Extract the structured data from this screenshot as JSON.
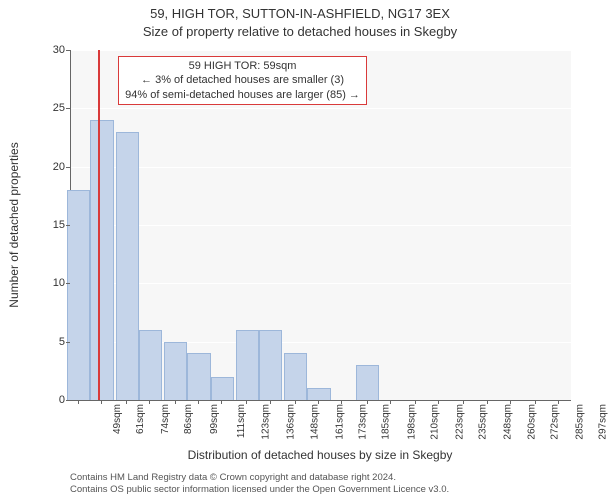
{
  "title_line1": "59, HIGH TOR, SUTTON-IN-ASHFIELD, NG17 3EX",
  "title_line2": "Size of property relative to detached houses in Skegby",
  "y_axis_label": "Number of detached properties",
  "x_axis_label": "Distribution of detached houses by size in Skegby",
  "chart": {
    "type": "bar",
    "background_color": "#f7f7f7",
    "grid_color": "#ffffff",
    "axis_color": "#666666",
    "bar_color": "#c5d4ea",
    "bar_border_color": "#9db7da",
    "ylim": [
      0,
      30
    ],
    "ytick_step": 5,
    "yticks": [
      0,
      5,
      10,
      15,
      20,
      25,
      30
    ],
    "x_tick_labels": [
      "49sqm",
      "61sqm",
      "74sqm",
      "86sqm",
      "99sqm",
      "111sqm",
      "123sqm",
      "136sqm",
      "148sqm",
      "161sqm",
      "173sqm",
      "185sqm",
      "198sqm",
      "210sqm",
      "223sqm",
      "235sqm",
      "248sqm",
      "260sqm",
      "272sqm",
      "285sqm",
      "297sqm"
    ],
    "x_tick_positions": [
      49,
      61,
      74,
      86,
      99,
      111,
      123,
      136,
      148,
      161,
      173,
      185,
      198,
      210,
      223,
      235,
      248,
      260,
      272,
      285,
      297
    ],
    "x_range": [
      45,
      303
    ],
    "bar_bin_width": 12,
    "bars": [
      {
        "x": 49,
        "v": 18
      },
      {
        "x": 61,
        "v": 24
      },
      {
        "x": 74,
        "v": 23
      },
      {
        "x": 86,
        "v": 6
      },
      {
        "x": 99,
        "v": 5
      },
      {
        "x": 111,
        "v": 4
      },
      {
        "x": 123,
        "v": 2
      },
      {
        "x": 136,
        "v": 6
      },
      {
        "x": 148,
        "v": 6
      },
      {
        "x": 161,
        "v": 4
      },
      {
        "x": 173,
        "v": 1
      },
      {
        "x": 185,
        "v": 0
      },
      {
        "x": 198,
        "v": 3
      },
      {
        "x": 210,
        "v": 0
      },
      {
        "x": 223,
        "v": 0
      },
      {
        "x": 235,
        "v": 0
      },
      {
        "x": 248,
        "v": 0
      },
      {
        "x": 260,
        "v": 0
      },
      {
        "x": 272,
        "v": 0
      },
      {
        "x": 285,
        "v": 0
      },
      {
        "x": 297,
        "v": 0
      }
    ],
    "marker": {
      "value": 59,
      "color": "#d93a3a",
      "width": 2
    },
    "annotation": {
      "line1": "59 HIGH TOR: 59sqm",
      "line2": "← 3% of detached houses are smaller (3)",
      "line3": "94% of semi-detached houses are larger (85) →",
      "border_color": "#d93a3a",
      "background": "#ffffff",
      "font_size": 11
    }
  },
  "credits_line1": "Contains HM Land Registry data © Crown copyright and database right 2024.",
  "credits_line2": "Contains OS public sector information licensed under the Open Government Licence v3.0."
}
